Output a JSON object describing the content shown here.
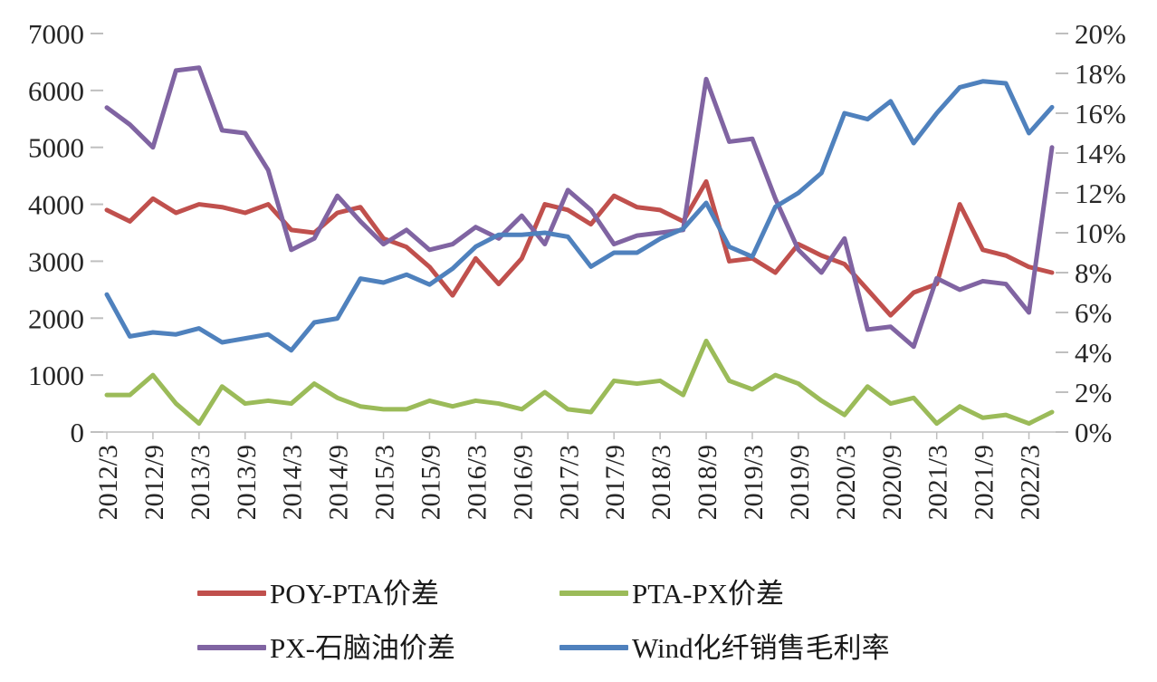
{
  "chart_data": {
    "type": "line",
    "title": "",
    "x": [
      "2012/3",
      "2012/6",
      "2012/9",
      "2012/12",
      "2013/3",
      "2013/6",
      "2013/9",
      "2013/12",
      "2014/3",
      "2014/6",
      "2014/9",
      "2014/12",
      "2015/3",
      "2015/6",
      "2015/9",
      "2015/12",
      "2016/3",
      "2016/6",
      "2016/9",
      "2016/12",
      "2017/3",
      "2017/6",
      "2017/9",
      "2017/12",
      "2018/3",
      "2018/6",
      "2018/9",
      "2018/12",
      "2019/3",
      "2019/6",
      "2019/9",
      "2019/12",
      "2020/3",
      "2020/6",
      "2020/9",
      "2020/12",
      "2021/3",
      "2021/6",
      "2021/9",
      "2021/12",
      "2022/3",
      "2022/6"
    ],
    "x_tick_step": 2,
    "x_tick_labels": [
      "2012/3",
      "2012/9",
      "2013/3",
      "2013/9",
      "2014/3",
      "2014/9",
      "2015/3",
      "2015/9",
      "2016/3",
      "2016/9",
      "2017/3",
      "2017/9",
      "2018/3",
      "2018/9",
      "2019/3",
      "2019/9",
      "2020/3",
      "2020/9",
      "2021/3",
      "2021/9",
      "2022/3"
    ],
    "left_axis": {
      "min": 0,
      "max": 7000,
      "step": 1000,
      "tick_labels": [
        "0",
        "1000",
        "2000",
        "3000",
        "4000",
        "5000",
        "6000",
        "7000"
      ]
    },
    "right_axis": {
      "min": 0,
      "max": 20,
      "step": 2,
      "suffix": "%",
      "tick_labels": [
        "0%",
        "2%",
        "4%",
        "6%",
        "8%",
        "10%",
        "12%",
        "14%",
        "16%",
        "18%",
        "20%"
      ]
    },
    "grid": false,
    "legend_position": "bottom",
    "series": [
      {
        "name": "POY-PTA价差",
        "axis": "left",
        "color": "#c0504d",
        "values": [
          3900,
          3700,
          4100,
          3850,
          4000,
          3950,
          3850,
          4000,
          3550,
          3500,
          3850,
          3950,
          3400,
          3250,
          2900,
          2400,
          3050,
          2600,
          3050,
          4000,
          3900,
          3650,
          4150,
          3950,
          3900,
          3700,
          4400,
          3000,
          3050,
          2800,
          3300,
          3100,
          2950,
          2500,
          2050,
          2450,
          2600,
          4000,
          3200,
          3100,
          2900,
          2800
        ]
      },
      {
        "name": "PTA-PX价差",
        "axis": "left",
        "color": "#9bbb59",
        "values": [
          650,
          650,
          1000,
          500,
          150,
          800,
          500,
          550,
          500,
          850,
          600,
          450,
          400,
          400,
          550,
          450,
          550,
          500,
          400,
          700,
          400,
          350,
          900,
          850,
          900,
          650,
          1600,
          900,
          750,
          1000,
          850,
          550,
          300,
          800,
          500,
          600,
          150,
          450,
          250,
          300,
          150,
          350
        ]
      },
      {
        "name": "PX-石脑油价差",
        "axis": "left",
        "color": "#8064a2",
        "values": [
          5700,
          5400,
          5000,
          6350,
          6400,
          5300,
          5250,
          4600,
          3200,
          3400,
          4150,
          3700,
          3300,
          3550,
          3200,
          3300,
          3600,
          3400,
          3800,
          3300,
          4250,
          3900,
          3300,
          3450,
          3500,
          3550,
          6200,
          5100,
          5150,
          4100,
          3200,
          2800,
          3400,
          1800,
          1850,
          1500,
          2700,
          2500,
          2650,
          2600,
          2100,
          5000
        ]
      },
      {
        "name": "Wind化纤销售毛利率",
        "axis": "right",
        "color": "#4f81bd",
        "values": [
          6.9,
          4.8,
          5.0,
          4.9,
          5.2,
          4.5,
          4.7,
          4.9,
          4.1,
          5.5,
          5.7,
          7.7,
          7.5,
          7.9,
          7.4,
          8.2,
          9.3,
          9.9,
          9.9,
          10.0,
          9.8,
          8.3,
          9.0,
          9.0,
          9.7,
          10.2,
          11.5,
          9.3,
          8.8,
          11.3,
          12.0,
          13.0,
          16.0,
          15.7,
          16.6,
          14.5,
          16.0,
          17.3,
          17.6,
          17.5,
          15.0,
          16.3
        ]
      }
    ],
    "colors": {
      "axis_line": "#bfbfbf",
      "text": "#262626"
    }
  }
}
